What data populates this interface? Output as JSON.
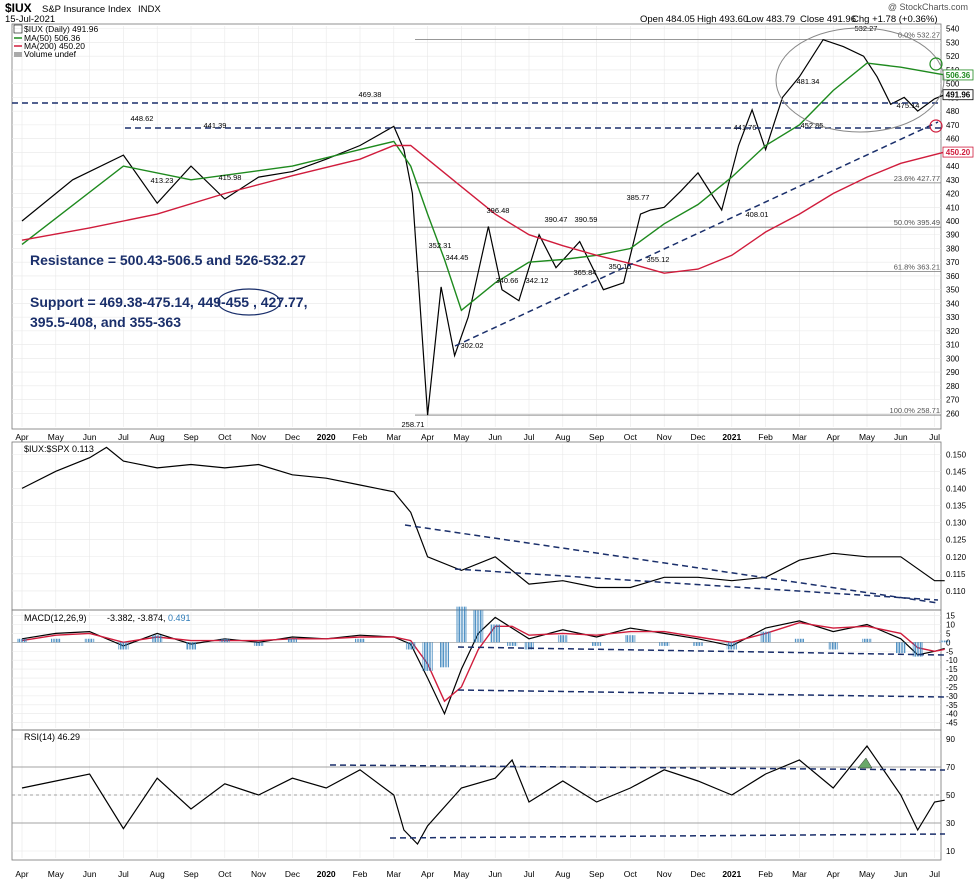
{
  "header": {
    "symbol": "$IUX",
    "name": "S&P Insurance Index",
    "exchange": "INDX",
    "date": "15-Jul-2021",
    "open": "Open 484.05",
    "high": "High 493.60",
    "low": "Low 483.79",
    "close": "Close 491.96",
    "change": "Chg +1.78 (+0.36%)",
    "watermark": "@ StockCharts.com"
  },
  "legend": {
    "main": "$IUX (Daily) 491.96",
    "ma50": "MA(50) 506.36",
    "ma200": "MA(200) 450.20",
    "volume": "Volume undef",
    "ratio": "$IUX:$SPX 0.113",
    "macd_name": "MACD(12,26,9)",
    "macd_vals": "-3.382, -3.874,",
    "macd_hist": "0.491",
    "rsi": "RSI(14) 46.29"
  },
  "annotations": {
    "resistance": "Resistance = 500.43-506.5 and 526-532.27",
    "support_1": "Support = 469.38-475.14,",
    "support_circled": "449-455",
    "support_2": ", 427.77,",
    "support_3": "395.5-408, and 355-363"
  },
  "colors": {
    "price": "#000000",
    "ma50": "#1e8a1e",
    "ma200": "#d01c3c",
    "dashed_lines": "#1a2f6b",
    "annotation_text": "#1a2f6b",
    "macd_hist": "#2d7bb8",
    "grid": "#e8e8e8"
  },
  "chart_data": [
    {
      "type": "line",
      "title": "$IUX S&P Insurance Index (Daily)",
      "x_axis": [
        "Apr",
        "May",
        "Jun",
        "Jul",
        "Aug",
        "Sep",
        "Oct",
        "Nov",
        "Dec",
        "2020",
        "Feb",
        "Mar",
        "Apr",
        "May",
        "Jun",
        "Jul",
        "Aug",
        "Sep",
        "Oct",
        "Nov",
        "Dec",
        "2021",
        "Feb",
        "Mar",
        "Apr",
        "May",
        "Jun",
        "Jul"
      ],
      "y_ticks": [
        260,
        270,
        280,
        290,
        300,
        310,
        320,
        330,
        340,
        350,
        360,
        370,
        380,
        390,
        400,
        410,
        420,
        430,
        440,
        450,
        460,
        470,
        480,
        490,
        500,
        510,
        520,
        530,
        540
      ],
      "ylim": [
        250,
        542
      ],
      "price_labels": [
        "448.62",
        "441.39",
        "413.23",
        "415.98",
        "469.38",
        "258.71",
        "352.31",
        "344.45",
        "302.02",
        "396.48",
        "390.47",
        "390.59",
        "340.66",
        "342.12",
        "365.84",
        "385.77",
        "350.15",
        "355.12",
        "408.01",
        "441.76",
        "481.34",
        "452.85",
        "532.27",
        "475.14"
      ],
      "fib_labels": [
        "0.0% 532.27",
        "23.6% 427.77",
        "50.0% 395.49",
        "61.8% 363.21",
        "100.0% 258.71"
      ],
      "right_labels": [
        "506.36",
        "491.96",
        "450.20"
      ],
      "series": [
        {
          "name": "$IUX (Daily)",
          "x": [
            0,
            1.5,
            3,
            4,
            5,
            6,
            7,
            8,
            9,
            10,
            11,
            11.3,
            11.55,
            12,
            12.4,
            12.8,
            13.2,
            13.8,
            14.2,
            14.7,
            15.3,
            15.8,
            16.5,
            17.2,
            17.8,
            18.3,
            18.6,
            19,
            19.5,
            20,
            20.7,
            21.2,
            21.6,
            22,
            22.5,
            23,
            23.7,
            24.3,
            24.9,
            25.3,
            25.7,
            26.1,
            26.5,
            27,
            27.3
          ],
          "values": [
            400,
            430,
            448,
            413,
            440,
            416,
            432,
            436,
            445,
            455,
            469,
            452,
            420,
            258.7,
            352,
            302,
            330,
            396,
            350,
            342,
            390,
            366,
            385,
            350,
            355,
            405,
            408,
            410,
            422,
            435,
            408,
            455,
            481,
            452,
            490,
            505,
            532,
            527,
            520,
            505,
            485,
            490,
            480,
            489,
            492
          ]
        },
        {
          "name": "MA(50)",
          "x": [
            0,
            3,
            5,
            8,
            10,
            11,
            11.5,
            12,
            12.5,
            13,
            14,
            15,
            16,
            17,
            18,
            19,
            20,
            21,
            22,
            23,
            24,
            25,
            26,
            27.3
          ],
          "values": [
            383,
            440,
            430,
            440,
            452,
            458,
            440,
            405,
            372,
            335,
            355,
            370,
            372,
            375,
            380,
            398,
            412,
            432,
            455,
            470,
            495,
            515,
            512,
            506.4
          ]
        },
        {
          "name": "MA(200)",
          "x": [
            0,
            2,
            4,
            6,
            8,
            10,
            11,
            11.5,
            12,
            13,
            14,
            15,
            16,
            17,
            18,
            19,
            20,
            21,
            22,
            23,
            24,
            25,
            26,
            27.3
          ],
          "values": [
            386,
            395,
            405,
            420,
            433,
            445,
            455,
            455,
            445,
            425,
            405,
            390,
            382,
            375,
            369,
            362,
            365,
            375,
            392,
            405,
            420,
            432,
            442,
            450.2
          ]
        }
      ]
    },
    {
      "type": "line",
      "title": "$IUX:$SPX",
      "y_ticks": [
        0.11,
        0.115,
        0.12,
        0.125,
        0.13,
        0.135,
        0.14,
        0.145,
        0.15
      ],
      "ylim": [
        0.105,
        0.153
      ],
      "series": [
        {
          "name": "$IUX:$SPX",
          "x": [
            0,
            1,
            2,
            2.5,
            3,
            4,
            5,
            6,
            7,
            8,
            9,
            10,
            11,
            11.5,
            12,
            13,
            14,
            15,
            16,
            17,
            18,
            19,
            20,
            21,
            22,
            23,
            24,
            25,
            26,
            27,
            27.3
          ],
          "values": [
            0.14,
            0.145,
            0.149,
            0.152,
            0.148,
            0.146,
            0.147,
            0.146,
            0.147,
            0.144,
            0.143,
            0.141,
            0.139,
            0.133,
            0.12,
            0.116,
            0.12,
            0.112,
            0.113,
            0.111,
            0.111,
            0.114,
            0.114,
            0.113,
            0.114,
            0.119,
            0.121,
            0.12,
            0.12,
            0.113,
            0.113
          ]
        }
      ]
    },
    {
      "type": "line",
      "title": "MACD(12,26,9)",
      "y_ticks": [
        15,
        10,
        5,
        0,
        -5,
        -10,
        -15,
        -20,
        -25,
        -30,
        -35,
        -40,
        -45
      ],
      "ylim": [
        -48,
        17
      ],
      "series": [
        {
          "name": "MACD",
          "x": [
            0,
            1,
            2,
            3,
            4,
            5,
            6,
            7,
            8,
            9,
            10,
            11,
            11.5,
            12,
            12.5,
            13,
            13.5,
            14,
            14.5,
            15,
            16,
            17,
            18,
            19,
            20,
            21,
            22,
            23,
            24,
            25,
            26,
            26.5,
            27,
            27.3
          ],
          "values": [
            2,
            5,
            6,
            -2,
            5,
            -1,
            2,
            0,
            3,
            2,
            4,
            3,
            -1,
            -20,
            -40,
            -15,
            5,
            14,
            8,
            2,
            7,
            3,
            8,
            5,
            2,
            -2,
            8,
            12,
            6,
            10,
            2,
            -7,
            -5,
            -3.4
          ]
        },
        {
          "name": "Signal",
          "x": [
            0,
            1,
            2,
            3,
            4,
            5,
            6,
            7,
            8,
            9,
            10,
            11,
            11.5,
            12,
            12.5,
            13,
            13.5,
            14,
            14.5,
            15,
            16,
            17,
            18,
            19,
            20,
            21,
            22,
            23,
            24,
            25,
            26,
            26.5,
            27,
            27.3
          ],
          "values": [
            1,
            4,
            5,
            0,
            3,
            1,
            1,
            1,
            2,
            2,
            3,
            3,
            1,
            -12,
            -33,
            -25,
            -4,
            9,
            9,
            4,
            5,
            4,
            6,
            6,
            3,
            0,
            5,
            11,
            8,
            9,
            5,
            -3,
            -5,
            -3.9
          ]
        }
      ]
    },
    {
      "type": "line",
      "title": "RSI(14)",
      "y_ticks": [
        90,
        70,
        50,
        30,
        10
      ],
      "ylim": [
        5,
        95
      ],
      "series": [
        {
          "name": "RSI(14)",
          "x": [
            0,
            1,
            2,
            3,
            4,
            5,
            6,
            7,
            8,
            9,
            10,
            11,
            11.3,
            11.7,
            12,
            13,
            14,
            14.5,
            15,
            16,
            17,
            18,
            19,
            20,
            21,
            22,
            23,
            24,
            25,
            26,
            26.5,
            27,
            27.3
          ],
          "values": [
            55,
            60,
            65,
            26,
            62,
            40,
            58,
            50,
            62,
            55,
            68,
            50,
            25,
            15,
            28,
            55,
            62,
            75,
            45,
            60,
            45,
            55,
            68,
            60,
            50,
            65,
            75,
            55,
            85,
            50,
            25,
            45,
            46.3
          ]
        }
      ]
    }
  ]
}
